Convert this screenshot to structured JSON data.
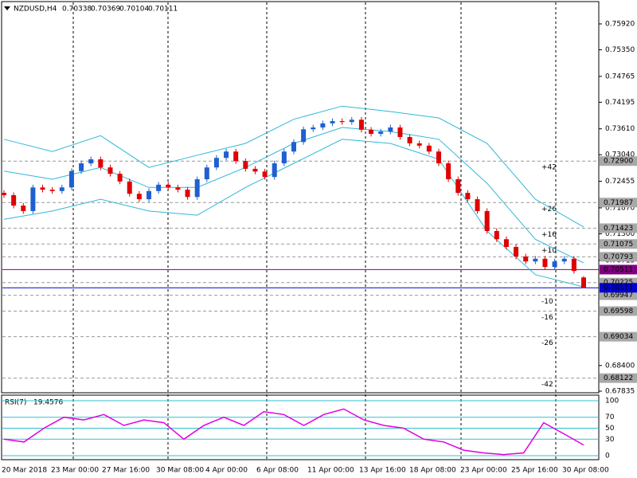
{
  "chart_data": [
    {
      "type": "candlestick",
      "symbol": "NZDUSD,H4",
      "open": [
        0.722,
        0.7215,
        0.7192,
        0.718,
        0.7232,
        0.7227,
        0.7224,
        0.7232,
        0.7268,
        0.7285,
        0.7294,
        0.7276,
        0.7262,
        0.7245,
        0.7218,
        0.7206,
        0.7224,
        0.7238,
        0.7232,
        0.7227,
        0.7211,
        0.725,
        0.7276,
        0.7297,
        0.7311,
        0.729,
        0.7273,
        0.7267,
        0.7255,
        0.7285,
        0.7311,
        0.7332,
        0.736,
        0.7364,
        0.7373,
        0.7378,
        0.7376,
        0.7381,
        0.7359,
        0.735,
        0.7355,
        0.7364,
        0.7343,
        0.7329,
        0.7324,
        0.7311,
        0.7285,
        0.725,
        0.722,
        0.7206,
        0.718,
        0.7136,
        0.7118,
        0.7101,
        0.708,
        0.7069,
        0.7075,
        0.7057,
        0.7069,
        0.7075,
        0.70338
      ],
      "high": [
        0.7226,
        0.7221,
        0.7198,
        0.7238,
        0.7238,
        0.7233,
        0.7238,
        0.7274,
        0.7291,
        0.73,
        0.73,
        0.7282,
        0.7268,
        0.7251,
        0.7224,
        0.723,
        0.7244,
        0.7244,
        0.7238,
        0.7233,
        0.7256,
        0.7282,
        0.7303,
        0.7317,
        0.7317,
        0.7296,
        0.7279,
        0.7273,
        0.7291,
        0.7317,
        0.7338,
        0.7366,
        0.737,
        0.7379,
        0.7384,
        0.7384,
        0.7387,
        0.7387,
        0.7365,
        0.7361,
        0.737,
        0.737,
        0.7349,
        0.7335,
        0.733,
        0.7317,
        0.7291,
        0.7256,
        0.7226,
        0.7212,
        0.7186,
        0.7142,
        0.7124,
        0.7107,
        0.7086,
        0.7081,
        0.7081,
        0.7075,
        0.7081,
        0.7081,
        0.70369
      ],
      "low": [
        0.7209,
        0.7186,
        0.7174,
        0.7174,
        0.7221,
        0.7218,
        0.7218,
        0.7226,
        0.7262,
        0.7279,
        0.727,
        0.7256,
        0.7239,
        0.7212,
        0.72,
        0.72,
        0.7218,
        0.7226,
        0.7221,
        0.7205,
        0.7205,
        0.7244,
        0.727,
        0.7291,
        0.7284,
        0.7267,
        0.7261,
        0.7249,
        0.7249,
        0.7279,
        0.7305,
        0.7326,
        0.7354,
        0.7358,
        0.7367,
        0.737,
        0.737,
        0.7353,
        0.7344,
        0.7344,
        0.7349,
        0.7337,
        0.7323,
        0.7318,
        0.7305,
        0.7279,
        0.7244,
        0.7214,
        0.72,
        0.7174,
        0.713,
        0.7112,
        0.7095,
        0.7074,
        0.7063,
        0.7063,
        0.7051,
        0.7051,
        0.7063,
        0.7042,
        0.70104
      ],
      "close": [
        0.7215,
        0.7192,
        0.718,
        0.7232,
        0.7227,
        0.7224,
        0.7232,
        0.7268,
        0.7285,
        0.7294,
        0.7276,
        0.7262,
        0.7245,
        0.7218,
        0.7206,
        0.7224,
        0.7238,
        0.7232,
        0.7227,
        0.7211,
        0.725,
        0.7276,
        0.7297,
        0.7311,
        0.729,
        0.7273,
        0.7267,
        0.7255,
        0.7285,
        0.7311,
        0.7332,
        0.736,
        0.7364,
        0.7373,
        0.7378,
        0.7376,
        0.7381,
        0.7359,
        0.735,
        0.7355,
        0.7364,
        0.7343,
        0.7329,
        0.7324,
        0.7311,
        0.7285,
        0.725,
        0.722,
        0.7206,
        0.718,
        0.7136,
        0.7118,
        0.7101,
        0.708,
        0.7069,
        0.7075,
        0.7057,
        0.7069,
        0.7075,
        0.7048,
        0.70111
      ],
      "up_color": "#1f5fd0",
      "down_color": "#e00000",
      "series": [
        {
          "name": "upper",
          "color": "#30b8d8",
          "values": [
            0.7338,
            0.7311,
            0.7346,
            0.7276,
            0.7303,
            0.7329,
            0.7382,
            0.7411,
            0.7399,
            0.7385,
            0.7329,
            0.7206,
            0.7145
          ]
        },
        {
          "name": "middle",
          "color": "#30b8d8",
          "values": [
            0.7268,
            0.725,
            0.7276,
            0.7232,
            0.7232,
            0.7276,
            0.7329,
            0.7364,
            0.7355,
            0.7338,
            0.7241,
            0.7118,
            0.7066
          ]
        },
        {
          "name": "lower",
          "color": "#30b8d8",
          "values": [
            0.7162,
            0.718,
            0.7206,
            0.718,
            0.7171,
            0.7232,
            0.7285,
            0.7338,
            0.7329,
            0.7294,
            0.7136,
            0.704,
            0.7013
          ]
        }
      ],
      "ylim": [
        0.67835,
        0.7592
      ],
      "yticks": [
        {
          "value": 0.7592,
          "label": "0.75920"
        },
        {
          "value": 0.7535,
          "label": "0.75350"
        },
        {
          "value": 0.74765,
          "label": "0.74765"
        },
        {
          "value": 0.74195,
          "label": "0.74195"
        },
        {
          "value": 0.7361,
          "label": "0.73610"
        },
        {
          "value": 0.7304,
          "label": "0.73040"
        },
        {
          "value": 0.72455,
          "label": "0.72455"
        },
        {
          "value": 0.7187,
          "label": "0.71870"
        },
        {
          "value": 0.713,
          "label": "0.71300"
        },
        {
          "value": 0.70715,
          "label": "0.70715"
        },
        {
          "value": 0.684,
          "label": "0.68400"
        },
        {
          "value": 0.67835,
          "label": "0.67835"
        }
      ],
      "levels": [
        {
          "value": 0.729,
          "label": "0.72900",
          "offset": "+42"
        },
        {
          "value": 0.71987,
          "label": "0.71987",
          "offset": "+26"
        },
        {
          "value": 0.71423,
          "label": "0.71423",
          "offset": "+16"
        },
        {
          "value": 0.71075,
          "label": "0.71075",
          "offset": "+10"
        },
        {
          "value": 0.70793,
          "label": "0.70793"
        },
        {
          "value": 0.70225,
          "label": "0.70225"
        },
        {
          "value": 0.69947,
          "label": "0.69947",
          "offset": "-10"
        },
        {
          "value": 0.69598,
          "label": "0.69598",
          "offset": "-16"
        },
        {
          "value": 0.69034,
          "label": "0.69034",
          "offset": "-26"
        },
        {
          "value": 0.68122,
          "label": "0.68122",
          "offset": "-42"
        }
      ],
      "current": {
        "value": 0.70511,
        "label": "0.70511",
        "color": "#800080"
      },
      "bid": {
        "value": 0.70111,
        "label": "0.70111",
        "color": "#0000d0"
      }
    },
    {
      "type": "line",
      "title": "RSI(7)",
      "color": "#e000e0",
      "values": [
        30,
        25,
        50,
        70,
        65,
        75,
        55,
        65,
        60,
        30,
        55,
        70,
        55,
        80,
        75,
        55,
        75,
        85,
        65,
        55,
        50,
        30,
        25,
        10,
        5,
        2,
        5,
        60,
        40,
        19.4576
      ],
      "ylim": [
        0,
        100
      ],
      "yticks": [
        100,
        70,
        50,
        30,
        0
      ],
      "xlabels": [
        "20 Mar 2018",
        "23 Mar 00:00",
        "27 Mar 16:00",
        "30 Mar 08:00",
        "4 Apr 00:00",
        "6 Apr 08:00",
        "11 Apr 00:00",
        "13 Apr 16:00",
        "18 Apr 08:00",
        "23 Apr 00:00",
        "25 Apr 16:00",
        "30 Apr 08:00"
      ]
    }
  ]
}
